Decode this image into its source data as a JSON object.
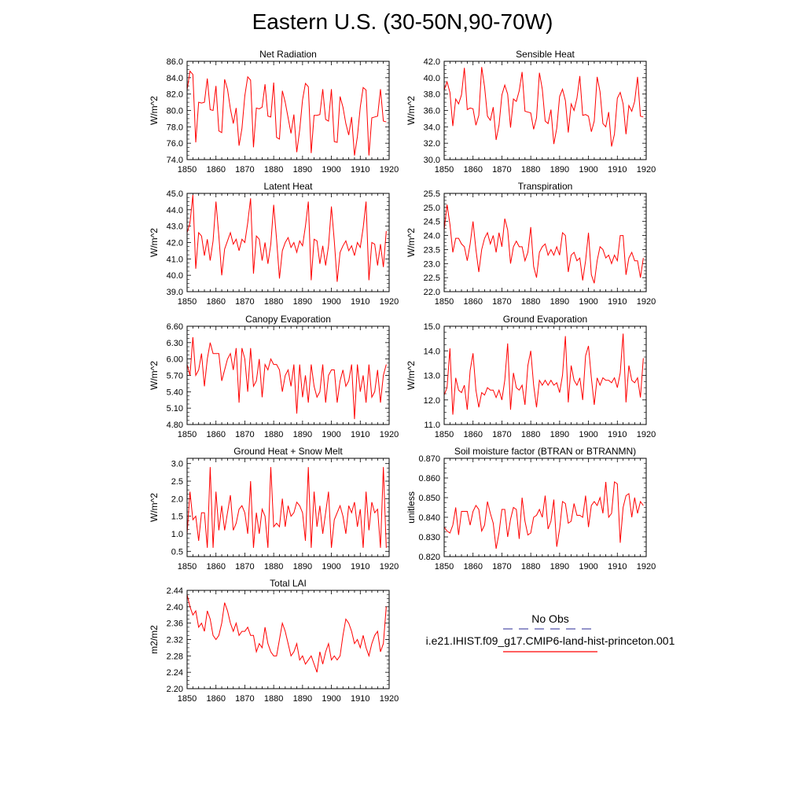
{
  "title": "Eastern U.S. (30-50N,90-70W)",
  "legend": {
    "obs_label": "No Obs",
    "obs_color": "#5555aa",
    "model_label": "i.e21.IHIST.f09_g17.CMIP6-land-hist-princeton.001",
    "model_color": "#ff0000"
  },
  "series_color": "#ff0000",
  "chart_data": [
    {
      "type": "line",
      "title": "Net Radiation",
      "ylabel": "W/m^2",
      "xlim": [
        1850,
        1920
      ],
      "ylim": [
        74.0,
        86.0
      ],
      "xticks": [
        1850,
        1860,
        1870,
        1880,
        1890,
        1900,
        1910,
        1920
      ],
      "yticks": [
        "74.0",
        "76.0",
        "78.0",
        "80.0",
        "82.0",
        "84.0",
        "86.0"
      ],
      "x_start": 1850,
      "values": [
        82.5,
        84.8,
        84.4,
        76.1,
        81.0,
        80.9,
        81.0,
        83.9,
        80.1,
        80.0,
        83.0,
        77.5,
        77.3,
        83.8,
        82.6,
        80.2,
        78.4,
        80.3,
        75.7,
        77.8,
        81.8,
        84.1,
        83.7,
        75.5,
        80.3,
        80.2,
        80.4,
        83.2,
        79.3,
        79.2,
        83.4,
        76.7,
        76.5,
        82.4,
        81.0,
        79.1,
        77.2,
        79.5,
        74.9,
        77.6,
        81.3,
        83.3,
        82.9,
        74.8,
        79.4,
        79.4,
        79.5,
        82.6,
        78.9,
        78.7,
        82.6,
        76.2,
        76.1,
        81.7,
        80.4,
        78.4,
        77.0,
        79.2,
        74.5,
        76.8,
        80.4,
        82.8,
        82.5,
        74.5,
        79.1,
        79.2,
        79.3,
        82.6,
        78.7,
        78.6
      ]
    },
    {
      "type": "line",
      "title": "Sensible Heat",
      "ylabel": "W/m^2",
      "xlim": [
        1850,
        1920
      ],
      "ylim": [
        30.0,
        42.0
      ],
      "xticks": [
        1850,
        1860,
        1870,
        1880,
        1890,
        1900,
        1910,
        1920
      ],
      "yticks": [
        "30.0",
        "32.0",
        "34.0",
        "36.0",
        "38.0",
        "40.0",
        "42.0"
      ],
      "x_start": 1850,
      "values": [
        38.5,
        39.5,
        38.2,
        34.1,
        37.4,
        36.8,
        37.9,
        41.2,
        36.1,
        36.3,
        36.2,
        34.2,
        35.4,
        41.3,
        38.9,
        35.3,
        34.8,
        36.4,
        32.4,
        34.2,
        37.9,
        39.1,
        38.0,
        33.9,
        37.4,
        37.1,
        38.4,
        40.7,
        35.9,
        35.8,
        35.7,
        33.7,
        35.1,
        40.6,
        38.6,
        34.7,
        34.4,
        36.1,
        31.9,
        33.8,
        37.7,
        38.6,
        37.2,
        33.3,
        36.8,
        36.0,
        37.5,
        40.2,
        35.4,
        35.5,
        35.3,
        33.4,
        34.7,
        40.1,
        38.3,
        34.4,
        34.0,
        35.8,
        31.6,
        33.1,
        37.5,
        38.2,
        36.8,
        33.1,
        36.6,
        35.9,
        37.1,
        40.1,
        35.3,
        35.2
      ]
    },
    {
      "type": "line",
      "title": "Latent Heat",
      "ylabel": "W/m^2",
      "xlim": [
        1850,
        1920
      ],
      "ylim": [
        39.0,
        45.0
      ],
      "xticks": [
        1850,
        1860,
        1870,
        1880,
        1890,
        1900,
        1910,
        1920
      ],
      "yticks": [
        "39.0",
        "40.0",
        "41.0",
        "42.0",
        "43.0",
        "44.0",
        "45.0"
      ],
      "x_start": 1850,
      "values": [
        42.6,
        43.2,
        44.9,
        40.4,
        42.6,
        42.4,
        41.2,
        42.2,
        40.9,
        42.1,
        44.5,
        42.4,
        40.0,
        41.6,
        42.1,
        42.6,
        41.9,
        42.2,
        41.5,
        42.2,
        42.0,
        43.2,
        44.7,
        40.1,
        42.4,
        42.2,
        40.9,
        42.0,
        40.7,
        41.9,
        44.3,
        42.2,
        39.8,
        41.5,
        42.0,
        42.3,
        41.7,
        42.0,
        41.4,
        42.1,
        41.8,
        43.0,
        44.5,
        39.7,
        42.2,
        42.1,
        40.7,
        41.8,
        40.6,
        41.8,
        44.2,
        42.1,
        39.6,
        41.4,
        41.8,
        42.1,
        41.5,
        41.8,
        41.2,
        42.0,
        41.7,
        42.9,
        44.5,
        39.7,
        42.0,
        41.9,
        40.6,
        41.9,
        40.5,
        42.7
      ]
    },
    {
      "type": "line",
      "title": "Transpiration",
      "ylabel": "W/m^2",
      "xlim": [
        1850,
        1920
      ],
      "ylim": [
        22.0,
        25.5
      ],
      "xticks": [
        1850,
        1860,
        1870,
        1880,
        1890,
        1900,
        1910,
        1920
      ],
      "yticks": [
        "22.0",
        "22.5",
        "23.0",
        "23.5",
        "24.0",
        "24.5",
        "25.0",
        "25.5"
      ],
      "x_start": 1850,
      "values": [
        24.2,
        25.1,
        24.4,
        23.4,
        23.9,
        23.9,
        23.7,
        23.6,
        23.1,
        23.7,
        24.5,
        23.5,
        22.7,
        23.5,
        23.9,
        24.1,
        23.7,
        24.0,
        23.4,
        24.1,
        23.6,
        24.6,
        24.2,
        23.0,
        23.6,
        23.8,
        23.6,
        23.6,
        23.1,
        23.4,
        24.3,
        22.9,
        22.5,
        23.4,
        23.6,
        23.7,
        23.3,
        23.5,
        23.3,
        23.6,
        23.3,
        24.1,
        24.0,
        22.7,
        23.3,
        23.4,
        23.1,
        23.2,
        22.4,
        23.1,
        24.1,
        22.6,
        22.3,
        23.1,
        23.6,
        23.5,
        23.2,
        23.3,
        23.0,
        23.3,
        23.1,
        24.0,
        24.0,
        22.6,
        23.2,
        23.4,
        23.1,
        23.1,
        22.5,
        23.2
      ]
    },
    {
      "type": "line",
      "title": "Canopy Evaporation",
      "ylabel": "W/m^2",
      "xlim": [
        1850,
        1920
      ],
      "ylim": [
        4.8,
        6.6
      ],
      "xticks": [
        1850,
        1860,
        1870,
        1880,
        1890,
        1900,
        1910,
        1920
      ],
      "yticks": [
        "4.80",
        "5.10",
        "5.40",
        "5.70",
        "6.00",
        "6.30",
        "6.60"
      ],
      "x_start": 1850,
      "values": [
        5.9,
        5.7,
        6.4,
        5.7,
        5.8,
        6.1,
        5.5,
        6.0,
        6.3,
        6.1,
        6.1,
        6.1,
        5.6,
        5.8,
        6.0,
        6.1,
        5.8,
        6.2,
        5.2,
        6.2,
        6.0,
        5.4,
        6.2,
        5.5,
        5.6,
        6.0,
        5.3,
        5.9,
        5.8,
        6.0,
        5.9,
        5.9,
        5.8,
        5.4,
        5.7,
        5.8,
        5.5,
        5.9,
        5.0,
        5.9,
        5.3,
        5.7,
        5.2,
        5.9,
        5.5,
        5.3,
        5.4,
        5.9,
        5.2,
        5.7,
        5.8,
        5.8,
        5.2,
        5.6,
        5.8,
        5.5,
        5.6,
        5.9,
        4.9,
        5.9,
        5.4,
        5.7,
        5.2,
        5.9,
        5.3,
        5.4,
        5.8,
        5.2,
        5.7,
        5.9
      ]
    },
    {
      "type": "line",
      "title": "Ground Evaporation",
      "ylabel": "W/m^2",
      "xlim": [
        1850,
        1920
      ],
      "ylim": [
        11.0,
        15.0
      ],
      "xticks": [
        1850,
        1860,
        1870,
        1880,
        1890,
        1900,
        1910,
        1920
      ],
      "yticks": [
        "11.0",
        "12.0",
        "13.0",
        "14.0",
        "15.0"
      ],
      "x_start": 1850,
      "values": [
        12.2,
        12.5,
        14.1,
        11.4,
        12.9,
        12.4,
        12.3,
        12.6,
        11.6,
        13.2,
        13.9,
        12.4,
        11.7,
        12.3,
        12.2,
        12.5,
        12.4,
        12.4,
        12.1,
        12.4,
        12.0,
        12.8,
        14.3,
        11.6,
        13.1,
        12.5,
        12.4,
        12.6,
        11.8,
        13.4,
        14.0,
        12.6,
        11.7,
        12.8,
        12.6,
        12.8,
        12.6,
        12.8,
        12.6,
        12.7,
        12.3,
        13.0,
        14.6,
        11.9,
        13.4,
        12.8,
        12.6,
        12.9,
        12.0,
        13.8,
        14.2,
        12.9,
        11.8,
        12.9,
        12.6,
        12.9,
        12.8,
        12.8,
        12.7,
        12.9,
        12.5,
        13.1,
        14.7,
        11.9,
        13.4,
        12.8,
        12.7,
        12.9,
        12.1,
        13.7
      ]
    },
    {
      "type": "line",
      "title": "Ground Heat + Snow Melt",
      "ylabel": "W/m^2",
      "xlim": [
        1850,
        1920
      ],
      "ylim": [
        0.35,
        3.15
      ],
      "xticks": [
        1850,
        1860,
        1870,
        1880,
        1890,
        1900,
        1910,
        1920
      ],
      "yticks": [
        "0.5",
        "1.0",
        "1.5",
        "2.0",
        "2.5",
        "3.0"
      ],
      "x_start": 1850,
      "values": [
        1.0,
        2.2,
        1.4,
        1.5,
        0.8,
        1.6,
        1.6,
        0.6,
        2.9,
        0.6,
        2.2,
        1.1,
        1.8,
        1.1,
        1.6,
        2.1,
        1.1,
        1.3,
        1.7,
        1.8,
        1.6,
        1.0,
        2.5,
        0.6,
        1.6,
        1.0,
        1.7,
        1.5,
        0.6,
        2.9,
        1.2,
        1.3,
        1.2,
        2.0,
        1.2,
        1.8,
        1.5,
        1.6,
        1.9,
        1.8,
        1.6,
        0.8,
        2.9,
        0.6,
        2.2,
        1.2,
        1.8,
        1.0,
        1.6,
        2.2,
        0.6,
        1.4,
        1.6,
        1.8,
        1.5,
        1.0,
        1.8,
        1.6,
        1.9,
        1.2,
        1.7,
        0.6,
        2.2,
        1.1,
        1.9,
        1.6,
        1.7,
        0.6,
        2.9,
        0.6
      ]
    },
    {
      "type": "line",
      "title": "Soil moisture factor (BTRAN or BTRANMN)",
      "ylabel": "unitless",
      "xlim": [
        1850,
        1920
      ],
      "ylim": [
        0.82,
        0.87
      ],
      "xticks": [
        1850,
        1860,
        1870,
        1880,
        1890,
        1900,
        1910,
        1920
      ],
      "yticks": [
        "0.820",
        "0.830",
        "0.840",
        "0.850",
        "0.860",
        "0.870"
      ],
      "x_start": 1850,
      "values": [
        0.835,
        0.833,
        0.832,
        0.836,
        0.845,
        0.831,
        0.843,
        0.843,
        0.843,
        0.836,
        0.843,
        0.846,
        0.844,
        0.833,
        0.836,
        0.848,
        0.842,
        0.837,
        0.824,
        0.832,
        0.844,
        0.844,
        0.83,
        0.839,
        0.845,
        0.844,
        0.829,
        0.85,
        0.838,
        0.831,
        0.832,
        0.84,
        0.841,
        0.844,
        0.84,
        0.851,
        0.834,
        0.838,
        0.849,
        0.825,
        0.834,
        0.848,
        0.847,
        0.837,
        0.838,
        0.847,
        0.841,
        0.841,
        0.84,
        0.851,
        0.835,
        0.846,
        0.848,
        0.846,
        0.85,
        0.842,
        0.858,
        0.84,
        0.842,
        0.858,
        0.857,
        0.827,
        0.845,
        0.851,
        0.852,
        0.84,
        0.85,
        0.842,
        0.848,
        0.846
      ]
    },
    {
      "type": "line",
      "title": "Total LAI",
      "ylabel": "m2/m2",
      "xlim": [
        1850,
        1920
      ],
      "ylim": [
        2.2,
        2.44
      ],
      "xticks": [
        1850,
        1860,
        1870,
        1880,
        1890,
        1900,
        1910,
        1920
      ],
      "yticks": [
        "2.20",
        "2.24",
        "2.28",
        "2.32",
        "2.36",
        "2.40",
        "2.44"
      ],
      "x_start": 1850,
      "values": [
        2.43,
        2.4,
        2.38,
        2.39,
        2.35,
        2.36,
        2.34,
        2.39,
        2.37,
        2.33,
        2.32,
        2.33,
        2.36,
        2.41,
        2.39,
        2.36,
        2.34,
        2.36,
        2.33,
        2.34,
        2.34,
        2.35,
        2.33,
        2.33,
        2.29,
        2.31,
        2.3,
        2.35,
        2.31,
        2.29,
        2.28,
        2.28,
        2.32,
        2.36,
        2.34,
        2.31,
        2.28,
        2.29,
        2.31,
        2.27,
        2.28,
        2.26,
        2.27,
        2.28,
        2.26,
        2.24,
        2.29,
        2.26,
        2.29,
        2.31,
        2.27,
        2.28,
        2.27,
        2.28,
        2.33,
        2.37,
        2.36,
        2.34,
        2.31,
        2.32,
        2.3,
        2.33,
        2.3,
        2.28,
        2.31,
        2.33,
        2.34,
        2.29,
        2.31,
        2.4
      ]
    }
  ]
}
